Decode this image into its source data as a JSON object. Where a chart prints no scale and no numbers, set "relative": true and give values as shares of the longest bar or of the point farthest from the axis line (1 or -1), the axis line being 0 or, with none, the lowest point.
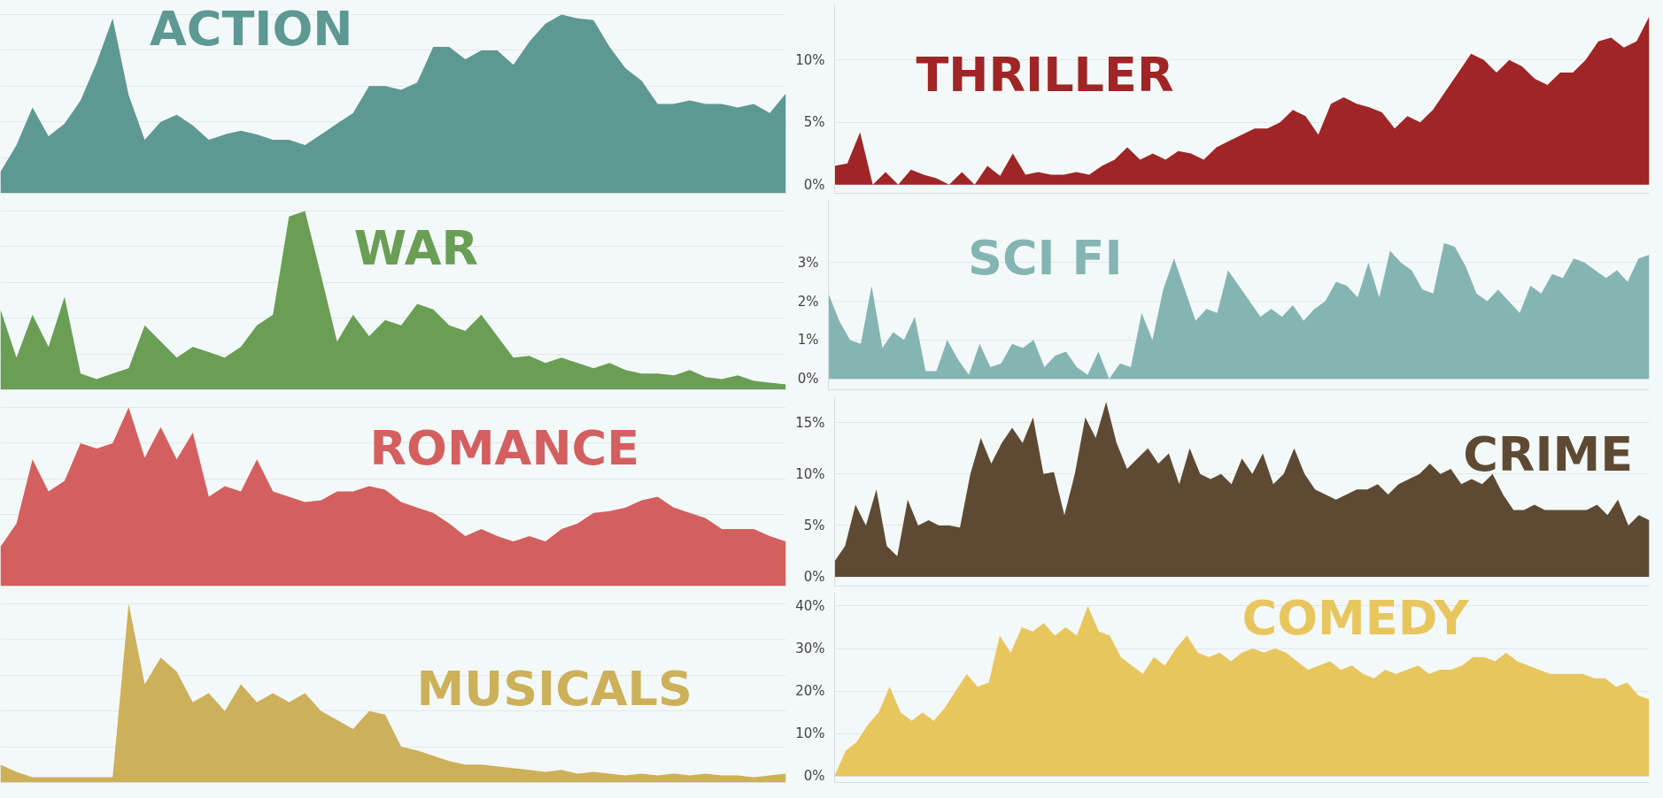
{
  "chart_data": [
    {
      "type": "area",
      "title": "ACTION",
      "relative": true,
      "grid": "y",
      "tick_labels": false,
      "categories": [
        null,
        null,
        null,
        null,
        null,
        null,
        null,
        null,
        null,
        null,
        null,
        null,
        null,
        null,
        null,
        null,
        null,
        null,
        null,
        null,
        null,
        null,
        null,
        null,
        null,
        null,
        null,
        null,
        null,
        null,
        null,
        null,
        null,
        null,
        null,
        null,
        null,
        null,
        null,
        null,
        null,
        null,
        null,
        null,
        null,
        null,
        null,
        null,
        null,
        null
      ],
      "series": [
        {
          "color": "#5e9893",
          "values": [
            0.12,
            0.27,
            0.48,
            0.32,
            0.39,
            0.52,
            0.73,
            0.98,
            0.55,
            0.3,
            0.4,
            0.44,
            0.38,
            0.3,
            0.33,
            0.35,
            0.33,
            0.3,
            0.3,
            0.27,
            0.33,
            0.39,
            0.45,
            0.6,
            0.6,
            0.58,
            0.62,
            0.82,
            0.82,
            0.75,
            0.8,
            0.8,
            0.72,
            0.85,
            0.95,
            1.0,
            0.98,
            0.97,
            0.82,
            0.7,
            0.63,
            0.5,
            0.5,
            0.52,
            0.5,
            0.5,
            0.48,
            0.5,
            0.45,
            0.56
          ]
        }
      ]
    },
    {
      "type": "area",
      "title": "THRILLER",
      "ylim": [
        -0.7,
        14.5
      ],
      "yticks": [
        {
          "value": 0,
          "label": "0%"
        },
        {
          "value": 5,
          "label": "5%"
        },
        {
          "value": 10,
          "label": "10%"
        }
      ],
      "grid": "y",
      "tick_labels": "y",
      "categories": [
        null,
        null,
        null,
        null,
        null,
        null,
        null,
        null,
        null,
        null,
        null,
        null,
        null,
        null,
        null,
        null,
        null,
        null,
        null,
        null,
        null,
        null,
        null,
        null,
        null,
        null,
        null,
        null,
        null,
        null,
        null,
        null,
        null,
        null,
        null,
        null,
        null,
        null,
        null,
        null,
        null,
        null,
        null,
        null,
        null,
        null,
        null,
        null,
        null,
        null,
        null,
        null,
        null,
        null,
        null,
        null,
        null,
        null,
        null,
        null,
        null,
        null,
        null,
        null,
        null
      ],
      "series": [
        {
          "color": "#a02526",
          "values": [
            1.5,
            1.7,
            4.2,
            0,
            1,
            0,
            1.2,
            0.8,
            0.5,
            0,
            1,
            0,
            1.5,
            0.7,
            2.5,
            0.8,
            1,
            0.8,
            0.8,
            1,
            0.8,
            1.5,
            2,
            3,
            2,
            2.5,
            2,
            2.7,
            2.5,
            2,
            3,
            3.5,
            4,
            4.5,
            4.5,
            5,
            6,
            5.5,
            4,
            6.5,
            7,
            6.5,
            6.2,
            5.8,
            4.5,
            5.5,
            5,
            6,
            7.5,
            9,
            10.5,
            10,
            9,
            10,
            9.5,
            8.5,
            8,
            9,
            9,
            10,
            11.5,
            11.8,
            11,
            11.5,
            13.5
          ]
        }
      ]
    },
    {
      "type": "area",
      "title": "WAR",
      "relative": true,
      "grid": "y",
      "tick_labels": false,
      "categories": [
        null,
        null,
        null,
        null,
        null,
        null,
        null,
        null,
        null,
        null,
        null,
        null,
        null,
        null,
        null,
        null,
        null,
        null,
        null,
        null,
        null,
        null,
        null,
        null,
        null,
        null,
        null,
        null,
        null,
        null,
        null,
        null,
        null,
        null,
        null,
        null,
        null,
        null,
        null,
        null,
        null,
        null,
        null,
        null,
        null,
        null,
        null,
        null,
        null,
        null
      ],
      "series": [
        {
          "color": "#6a9e55",
          "values": [
            0.45,
            0.18,
            0.42,
            0.24,
            0.52,
            0.09,
            0.06,
            0.09,
            0.12,
            0.36,
            0.27,
            0.18,
            0.24,
            0.21,
            0.18,
            0.24,
            0.36,
            0.42,
            0.97,
            1.0,
            0.64,
            0.27,
            0.42,
            0.3,
            0.39,
            0.36,
            0.48,
            0.45,
            0.36,
            0.33,
            0.42,
            0.3,
            0.18,
            0.19,
            0.15,
            0.18,
            0.15,
            0.12,
            0.15,
            0.11,
            0.09,
            0.09,
            0.08,
            0.11,
            0.07,
            0.06,
            0.08,
            0.05,
            0.04,
            0.03
          ]
        }
      ]
    },
    {
      "type": "area",
      "title": "SCI FI",
      "ylim": [
        -0.28,
        4.6
      ],
      "yticks": [
        {
          "value": 0,
          "label": "0%"
        },
        {
          "value": 1,
          "label": "1%"
        },
        {
          "value": 2,
          "label": "2%"
        },
        {
          "value": 3,
          "label": "3%"
        }
      ],
      "grid": "y",
      "tick_labels": "y",
      "categories": [
        null,
        null,
        null,
        null,
        null,
        null,
        null,
        null,
        null,
        null,
        null,
        null,
        null,
        null,
        null,
        null,
        null,
        null,
        null,
        null,
        null,
        null,
        null,
        null,
        null,
        null,
        null,
        null,
        null,
        null,
        null,
        null,
        null,
        null,
        null,
        null,
        null,
        null,
        null,
        null,
        null,
        null,
        null,
        null,
        null,
        null,
        null,
        null,
        null,
        null,
        null,
        null,
        null,
        null,
        null,
        null,
        null,
        null,
        null,
        null,
        null,
        null,
        null,
        null,
        null,
        null,
        null,
        null,
        null,
        null,
        null,
        null,
        null,
        null,
        null,
        null,
        null
      ],
      "series": [
        {
          "color": "#85b5b2",
          "values": [
            2.2,
            1.5,
            1.0,
            0.9,
            2.4,
            0.8,
            1.2,
            1.0,
            1.6,
            0.2,
            0.2,
            1.0,
            0.5,
            0.1,
            0.9,
            0.3,
            0.4,
            0.9,
            0.8,
            1.0,
            0.3,
            0.6,
            0.7,
            0.3,
            0.1,
            0.7,
            0.0,
            0.4,
            0.3,
            1.7,
            1.0,
            2.3,
            3.1,
            2.3,
            1.5,
            1.8,
            1.7,
            2.8,
            2.4,
            2.0,
            1.6,
            1.8,
            1.6,
            1.9,
            1.5,
            1.8,
            2.0,
            2.5,
            2.4,
            2.1,
            3.0,
            2.1,
            3.3,
            3.0,
            2.8,
            2.3,
            2.2,
            3.5,
            3.4,
            2.9,
            2.2,
            2.0,
            2.3,
            2.0,
            1.7,
            2.4,
            2.2,
            2.7,
            2.6,
            3.1,
            3.0,
            2.8,
            2.6,
            2.8,
            2.5,
            3.1,
            3.2
          ]
        }
      ]
    },
    {
      "type": "area",
      "title": "ROMANCE",
      "relative": true,
      "grid": "y",
      "tick_labels": false,
      "categories": [
        null,
        null,
        null,
        null,
        null,
        null,
        null,
        null,
        null,
        null,
        null,
        null,
        null,
        null,
        null,
        null,
        null,
        null,
        null,
        null,
        null,
        null,
        null,
        null,
        null,
        null,
        null,
        null,
        null,
        null,
        null,
        null,
        null,
        null,
        null,
        null,
        null,
        null,
        null,
        null,
        null,
        null,
        null,
        null,
        null,
        null,
        null,
        null,
        null,
        null
      ],
      "series": [
        {
          "color": "#d45f5f",
          "values": [
            0.22,
            0.35,
            0.71,
            0.53,
            0.59,
            0.8,
            0.77,
            0.8,
            1.0,
            0.72,
            0.89,
            0.71,
            0.86,
            0.5,
            0.56,
            0.53,
            0.71,
            0.53,
            0.5,
            0.47,
            0.48,
            0.53,
            0.53,
            0.56,
            0.54,
            0.47,
            0.44,
            0.41,
            0.35,
            0.28,
            0.32,
            0.28,
            0.25,
            0.28,
            0.25,
            0.32,
            0.35,
            0.41,
            0.42,
            0.44,
            0.48,
            0.5,
            0.44,
            0.41,
            0.38,
            0.32,
            0.32,
            0.32,
            0.28,
            0.25
          ]
        }
      ]
    },
    {
      "type": "area",
      "title": "CRIME",
      "ylim": [
        -0.9,
        17.5
      ],
      "yticks": [
        {
          "value": 0,
          "label": "0%"
        },
        {
          "value": 5,
          "label": "5%"
        },
        {
          "value": 10,
          "label": "10%"
        },
        {
          "value": 15,
          "label": "15%"
        }
      ],
      "grid": "y",
      "tick_labels": "y",
      "categories": [
        null,
        null,
        null,
        null,
        null,
        null,
        null,
        null,
        null,
        null,
        null,
        null,
        null,
        null,
        null,
        null,
        null,
        null,
        null,
        null,
        null,
        null,
        null,
        null,
        null,
        null,
        null,
        null,
        null,
        null,
        null,
        null,
        null,
        null,
        null,
        null,
        null,
        null,
        null,
        null,
        null,
        null,
        null,
        null,
        null,
        null,
        null,
        null,
        null,
        null,
        null,
        null,
        null,
        null,
        null,
        null,
        null,
        null,
        null,
        null,
        null,
        null,
        null,
        null,
        null,
        null,
        null,
        null,
        null,
        null,
        null,
        null,
        null,
        null,
        null,
        null,
        null,
        null,
        null
      ],
      "series": [
        {
          "color": "#5e4a33",
          "values": [
            1.5,
            3,
            7,
            5,
            8.5,
            3,
            2,
            7.5,
            5,
            5.5,
            5,
            5,
            4.8,
            10,
            13.5,
            11,
            13,
            14.5,
            13,
            15.5,
            10,
            10.2,
            6,
            10,
            15.5,
            13.5,
            17,
            13,
            10.5,
            11.5,
            12.5,
            11,
            12,
            9,
            12.5,
            10,
            9.5,
            10,
            9,
            11.5,
            10,
            12,
            9,
            10,
            12.5,
            10,
            8.5,
            8,
            7.5,
            8,
            8.5,
            8.5,
            9,
            8,
            9,
            9.5,
            10,
            11,
            10,
            10.5,
            9,
            9.5,
            9,
            10,
            8,
            6.5,
            6.5,
            7,
            6.5,
            6.5,
            6.5,
            6.5,
            6.5,
            7,
            6,
            7.5,
            5,
            6,
            5.5
          ]
        }
      ]
    },
    {
      "type": "area",
      "title": "MUSICALS",
      "relative": true,
      "grid": "y",
      "tick_labels": false,
      "categories": [
        null,
        null,
        null,
        null,
        null,
        null,
        null,
        null,
        null,
        null,
        null,
        null,
        null,
        null,
        null,
        null,
        null,
        null,
        null,
        null,
        null,
        null,
        null,
        null,
        null,
        null,
        null,
        null,
        null,
        null,
        null,
        null,
        null,
        null,
        null,
        null,
        null,
        null,
        null,
        null,
        null,
        null,
        null,
        null,
        null,
        null,
        null,
        null,
        null,
        null
      ],
      "series": [
        {
          "color": "#cdb05a",
          "values": [
            0.1,
            0.06,
            0.03,
            null,
            null,
            null,
            null,
            0.03,
            1.0,
            0.55,
            0.7,
            0.62,
            0.45,
            0.5,
            0.4,
            0.55,
            0.45,
            0.5,
            0.45,
            0.5,
            0.4,
            0.35,
            0.3,
            0.4,
            0.38,
            0.2,
            0.18,
            0.15,
            0.12,
            0.1,
            0.1,
            0.09,
            0.08,
            0.07,
            0.06,
            0.07,
            0.05,
            0.06,
            0.05,
            0.04,
            0.05,
            0.04,
            0.05,
            0.04,
            0.05,
            0.04,
            0.04,
            0.03,
            0.04,
            0.05
          ]
        }
      ]
    },
    {
      "type": "area",
      "title": "COMEDY",
      "ylim": [
        -1.5,
        43
      ],
      "yticks": [
        {
          "value": 0,
          "label": "0%"
        },
        {
          "value": 10,
          "label": "10%"
        },
        {
          "value": 20,
          "label": "20%"
        },
        {
          "value": 30,
          "label": "30%"
        },
        {
          "value": 40,
          "label": "40%"
        }
      ],
      "grid": "y",
      "tick_labels": "y",
      "categories": [
        null,
        null,
        null,
        null,
        null,
        null,
        null,
        null,
        null,
        null,
        null,
        null,
        null,
        null,
        null,
        null,
        null,
        null,
        null,
        null,
        null,
        null,
        null,
        null,
        null,
        null,
        null,
        null,
        null,
        null,
        null,
        null,
        null,
        null,
        null,
        null,
        null,
        null,
        null,
        null,
        null,
        null,
        null,
        null,
        null,
        null,
        null,
        null,
        null,
        null,
        null,
        null,
        null,
        null,
        null,
        null,
        null,
        null,
        null,
        null,
        null,
        null,
        null,
        null,
        null,
        null,
        null,
        null,
        null,
        null,
        null,
        null,
        null,
        null,
        null
      ],
      "series": [
        {
          "color": "#e8c65e",
          "values": [
            0,
            6,
            8,
            12,
            15,
            21,
            15,
            13,
            15,
            13,
            16,
            20,
            24,
            21,
            22,
            33,
            29,
            35,
            34,
            36,
            33,
            35,
            33,
            40,
            34,
            33,
            28,
            26,
            24,
            28,
            26,
            30,
            33,
            29,
            28,
            29,
            27,
            29,
            30,
            29,
            30,
            29,
            27,
            25,
            26,
            27,
            25,
            26,
            24,
            23,
            25,
            24,
            25,
            26,
            24,
            25,
            25,
            26,
            28,
            28,
            27,
            29,
            27,
            26,
            25,
            24,
            24,
            24,
            24,
            23,
            23,
            21,
            22,
            19,
            18
          ]
        }
      ]
    }
  ]
}
